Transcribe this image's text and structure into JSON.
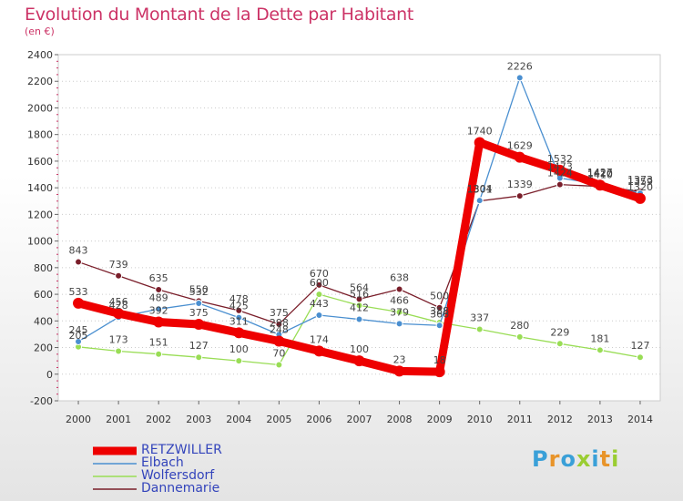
{
  "header": {
    "title": "Evolution du Montant de la Dette par Habitant",
    "subtitle": "(en €)"
  },
  "logo": {
    "text": "Proxiti",
    "colors": [
      "#3aa0d8",
      "#e8942a",
      "#3aa0d8",
      "#9acd32",
      "#3aa0d8",
      "#e8942a",
      "#9acd32"
    ]
  },
  "chart_data": {
    "type": "line",
    "x": [
      2000,
      2001,
      2002,
      2003,
      2004,
      2005,
      2006,
      2007,
      2008,
      2009,
      2010,
      2011,
      2012,
      2013,
      2014
    ],
    "ylim": [
      -200,
      2400
    ],
    "yticks": [
      -200,
      0,
      200,
      400,
      600,
      800,
      1000,
      1200,
      1400,
      1600,
      1800,
      2000,
      2200,
      2400
    ],
    "grid": "horizontal dotted",
    "legend_position": "bottom-left",
    "series": [
      {
        "name": "RETZWILLER",
        "color": "#ee0000",
        "values": [
          533,
          456,
          392,
          375,
          311,
          248,
          174,
          100,
          23,
          18,
          1740,
          1629,
          1532,
          1420,
          1320
        ]
      },
      {
        "name": "Elbach",
        "color": "#4a8fd0",
        "values": [
          245,
          428,
          489,
          532,
          425,
          298,
          443,
          412,
          379,
          366,
          1304,
          2226,
          1473,
          1427,
          1359
        ]
      },
      {
        "name": "Wolfersdorf",
        "color": "#99dd55",
        "values": [
          205,
          173,
          151,
          127,
          100,
          70,
          600,
          516,
          466,
          388,
          337,
          280,
          229,
          181,
          127
        ]
      },
      {
        "name": "Dannemarie",
        "color": "#7a1e2a",
        "values": [
          843,
          739,
          635,
          550,
          478,
          375,
          670,
          564,
          638,
          500,
          1301,
          1339,
          1424,
          1410,
          1373
        ]
      }
    ]
  }
}
